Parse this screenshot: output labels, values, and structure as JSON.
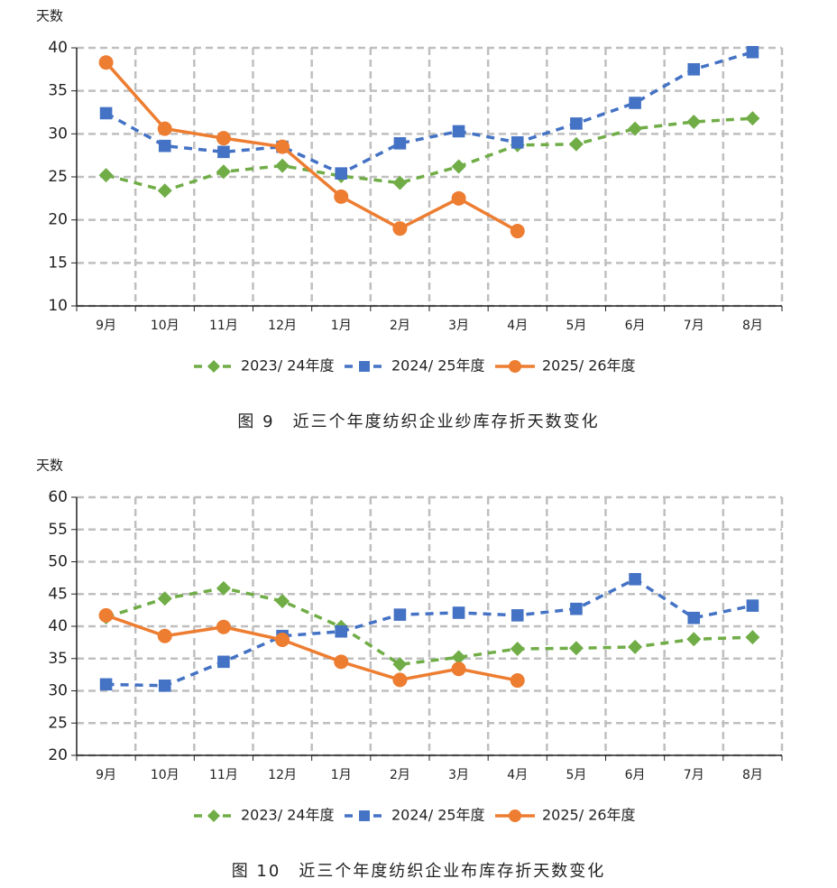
{
  "chart_data": [
    {
      "type": "line",
      "y_label": "天数",
      "caption": "图 9　近三个年度纺织企业纱库存折天数变化",
      "categories": [
        "9月",
        "10月",
        "11月",
        "12月",
        "1月",
        "2月",
        "3月",
        "4月",
        "5月",
        "6月",
        "7月",
        "8月"
      ],
      "ylim": [
        10,
        40
      ],
      "yticks": [
        10,
        15,
        20,
        25,
        30,
        35,
        40
      ],
      "grid": true,
      "series": [
        {
          "name": "2023/ 24年度",
          "color": "#70ad47",
          "line_style": "dashed",
          "marker": "diamond",
          "values": [
            25.2,
            23.4,
            25.6,
            26.3,
            25.1,
            24.3,
            26.2,
            28.7,
            28.8,
            30.6,
            31.4,
            31.8
          ]
        },
        {
          "name": "2024/ 25年度",
          "color": "#4472c4",
          "line_style": "dashed",
          "marker": "square",
          "values": [
            32.4,
            28.6,
            27.9,
            28.5,
            25.4,
            28.9,
            30.3,
            29.0,
            31.2,
            33.6,
            37.5,
            39.5
          ]
        },
        {
          "name": "2025/ 26年度",
          "color": "#ed7d31",
          "line_style": "solid",
          "marker": "circle",
          "values": [
            38.3,
            30.6,
            29.5,
            28.5,
            22.7,
            19.0,
            22.5,
            18.7,
            null,
            null,
            null,
            null
          ]
        }
      ]
    },
    {
      "type": "line",
      "y_label": "天数",
      "caption": "图 10　近三个年度纺织企业布库存折天数变化",
      "categories": [
        "9月",
        "10月",
        "11月",
        "12月",
        "1月",
        "2月",
        "3月",
        "4月",
        "5月",
        "6月",
        "7月",
        "8月"
      ],
      "ylim": [
        20,
        60
      ],
      "yticks": [
        20,
        25,
        30,
        35,
        40,
        45,
        50,
        55,
        60
      ],
      "grid": true,
      "series": [
        {
          "name": "2023/ 24年度",
          "color": "#70ad47",
          "line_style": "dashed",
          "marker": "diamond",
          "values": [
            41.4,
            44.3,
            45.9,
            43.9,
            39.9,
            34.1,
            35.2,
            36.5,
            36.6,
            36.8,
            38.0,
            38.3
          ]
        },
        {
          "name": "2024/ 25年度",
          "color": "#4472c4",
          "line_style": "dashed",
          "marker": "square",
          "values": [
            31.0,
            30.8,
            34.5,
            38.5,
            39.2,
            41.8,
            42.1,
            41.7,
            42.7,
            47.3,
            41.3,
            43.2
          ]
        },
        {
          "name": "2025/ 26年度",
          "color": "#ed7d31",
          "line_style": "solid",
          "marker": "circle",
          "values": [
            41.7,
            38.5,
            39.9,
            37.9,
            34.5,
            31.7,
            33.4,
            31.6,
            null,
            null,
            null,
            null
          ]
        }
      ]
    }
  ]
}
